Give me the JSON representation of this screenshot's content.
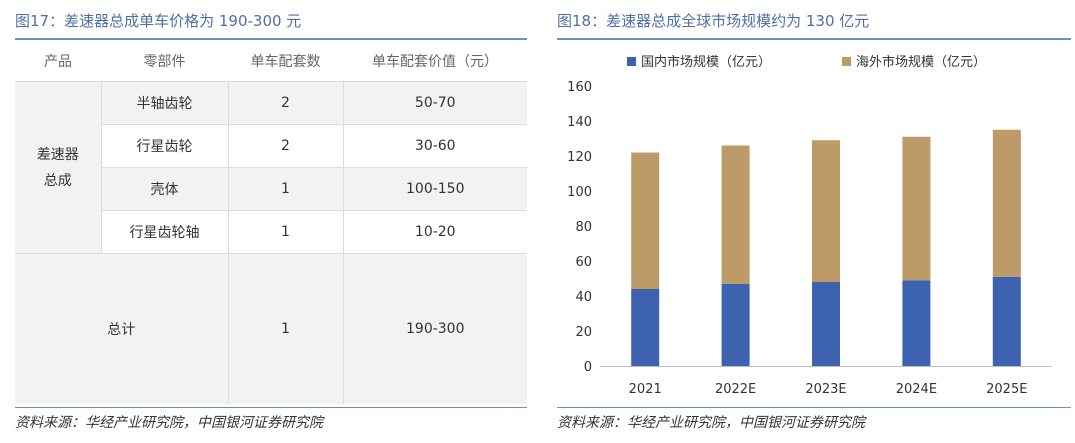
{
  "left": {
    "title": "图17：差速器总成单车价格为 190-300 元",
    "headers": [
      "产品",
      "零部件",
      "单车配套数",
      "单车配套价值（元）"
    ],
    "group_label_line1": "差速器",
    "group_label_line2": "总成",
    "rows": [
      {
        "part": "半轴齿轮",
        "count": "2",
        "value": "50-70"
      },
      {
        "part": "行星齿轮",
        "count": "2",
        "value": "30-60"
      },
      {
        "part": "壳体",
        "count": "1",
        "value": "100-150"
      },
      {
        "part": "行星齿轮轴",
        "count": "1",
        "value": "10-20"
      }
    ],
    "total": {
      "label": "总计",
      "count": "1",
      "value": "190-300"
    },
    "source": "资料来源：华经产业研究院，中国银河证券研究院"
  },
  "right": {
    "title": "图18：差速器总成全球市场规模约为 130 亿元",
    "source": "资料来源：华经产业研究院，中国银河证券研究院"
  },
  "chart_data": {
    "type": "bar",
    "stacked": true,
    "categories": [
      "2021",
      "2022E",
      "2023E",
      "2024E",
      "2025E"
    ],
    "series": [
      {
        "name": "国内市场规模（亿元）",
        "color": "#3d63b0",
        "values": [
          44,
          47,
          48,
          49,
          51
        ]
      },
      {
        "name": "海外市场规模（亿元）",
        "color": "#bc9b68",
        "values": [
          78,
          79,
          81,
          82,
          84
        ]
      }
    ],
    "ylim": [
      0,
      160
    ],
    "yticks": [
      0,
      20,
      40,
      60,
      80,
      100,
      120,
      140,
      160
    ],
    "grid": false,
    "legend": "top"
  }
}
